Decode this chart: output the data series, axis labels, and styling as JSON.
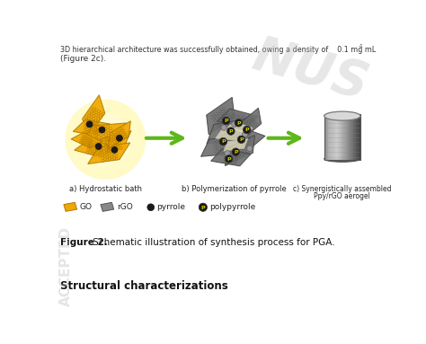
{
  "title_text": "Figure 2.",
  "title_caption": " Schematic illustration of synthesis process for PGA.",
  "header_line1": "3D hierarchical architecture was successfully obtained, owing a density of    0.1 mg mL",
  "header_sup": "-1",
  "header_line2": "(Figure 2c).",
  "watermark": "NUS",
  "footer_text": "Structural characterizations",
  "accepted_text": "ACCEPTED",
  "label_a": "a) Hydrostatic bath",
  "label_b": "b) Polymerization of pyrrole",
  "label_c1": "c) Synergistically assembled",
  "label_c2": "Ppy/rGO aerogel",
  "legend_items": [
    "GO",
    "rGO",
    "pyrrole",
    "polypyrrole"
  ],
  "arrow_color": "#5db81a",
  "bg_color": "#ffffff",
  "go_color": "#f0a800",
  "go_ec": "#b07800",
  "rgo_color": "#707070",
  "rgo_ec": "#444444",
  "pyrrole_color": "#1a1a1a",
  "ppy_color": "#1a1a1a",
  "ppy_label_color": "#d4cc00",
  "glow_color": "#fffac0",
  "text_color": "#222222",
  "caption_color": "#333333",
  "watermark_color": "#c0c0c0",
  "accepted_color": "#bbbbbb"
}
